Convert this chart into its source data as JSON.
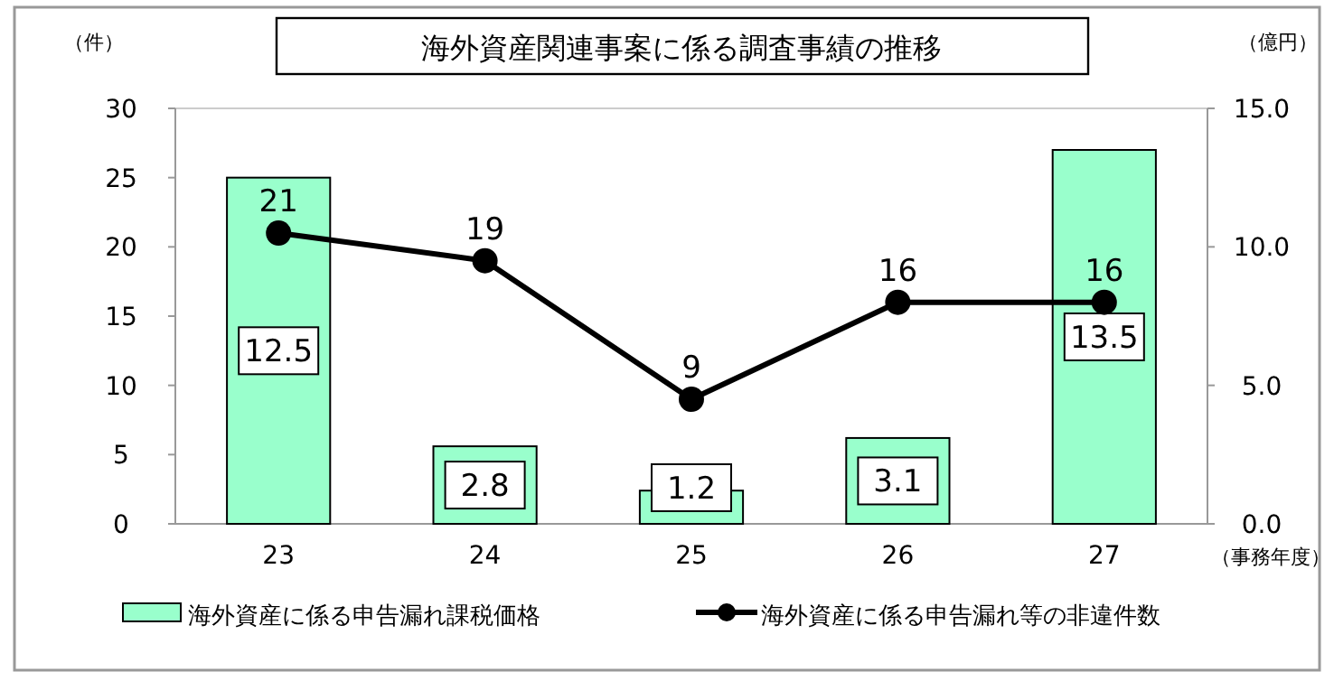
{
  "chart_data": {
    "type": "bar",
    "title": "海外資産関連事案に係る調査事績の推移",
    "xlabel": "（事務年度）",
    "ylabel": "（件）",
    "y2label": "（億円）",
    "categories": [
      "23",
      "24",
      "25",
      "26",
      "27"
    ],
    "series": [
      {
        "name": "海外資産に係る申告漏れ課税価格",
        "axis": "y2",
        "color": "#99ffcc",
        "values": [
          12.5,
          2.8,
          1.2,
          3.1,
          13.5
        ]
      },
      {
        "name": "海外資産に係る申告漏れ等の非違件数",
        "type": "line",
        "color": "#000000",
        "values": [
          21,
          19,
          9,
          16,
          16
        ]
      }
    ],
    "ylim": [
      0,
      30
    ],
    "yticks": [
      0,
      5,
      10,
      15,
      20,
      25,
      30
    ],
    "y2lim": [
      0,
      15
    ],
    "y2ticks": [
      {
        "value": 0,
        "label": "0.0"
      },
      {
        "value": 5,
        "label": "5.0"
      },
      {
        "value": 10,
        "label": "10.0"
      },
      {
        "value": 15,
        "label": "15.0"
      }
    ],
    "marker": "circle",
    "data_labels": true,
    "legend": "bottom"
  }
}
